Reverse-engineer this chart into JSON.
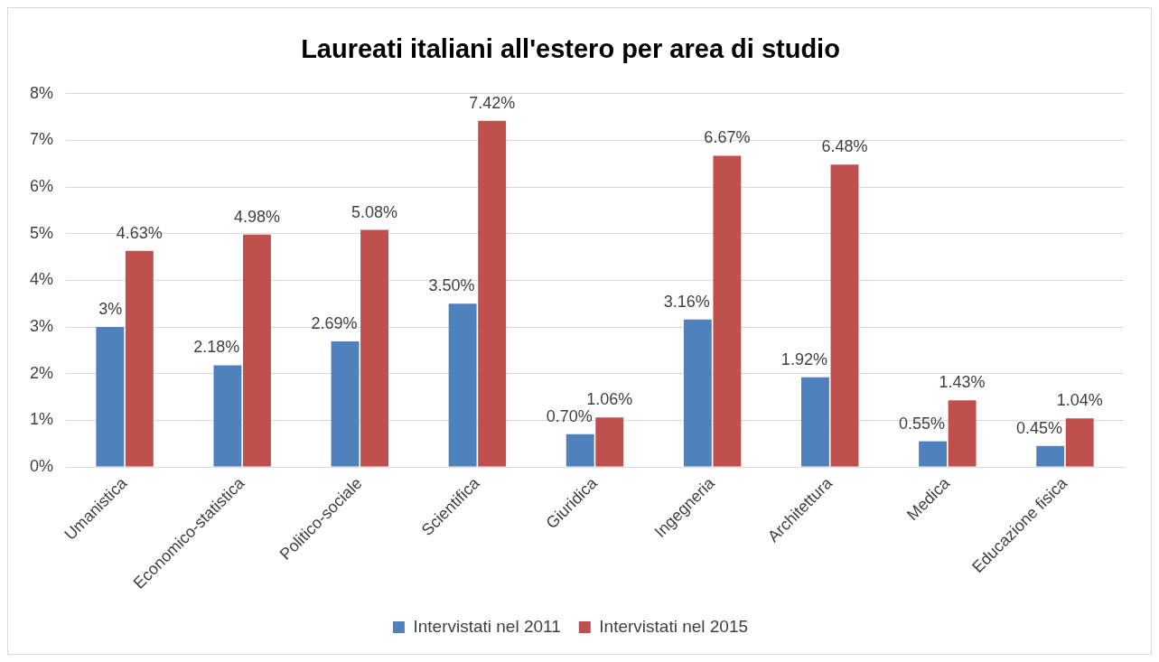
{
  "chart_data": {
    "type": "bar",
    "title": "Laureati italiani all'estero per area di studio",
    "categories": [
      "Umanistica",
      "Economico-statistica",
      "Politico-sociale",
      "Scientifica",
      "Giuridica",
      "Ingegneria",
      "Architettura",
      "Medica",
      "Educazione fisica"
    ],
    "series": [
      {
        "name": "Intervistati nel 2011",
        "color": "#4f81bd",
        "values": [
          3,
          2.18,
          2.69,
          3.5,
          0.7,
          3.16,
          1.92,
          0.55,
          0.45
        ],
        "value_labels": [
          "3%",
          "2.18%",
          "2.69%",
          "3.50%",
          "0.70%",
          "3.16%",
          "1.92%",
          "0.55%",
          "0.45%"
        ]
      },
      {
        "name": "Intervistati nel 2015",
        "color": "#c0504d",
        "values": [
          4.63,
          4.98,
          5.08,
          7.42,
          1.06,
          6.67,
          6.48,
          1.43,
          1.04
        ],
        "value_labels": [
          "4.63%",
          "4.98%",
          "5.08%",
          "7.42%",
          "1.06%",
          "6.67%",
          "6.48%",
          "1.43%",
          "1.04%"
        ]
      }
    ],
    "ylim": [
      0,
      8
    ],
    "yticks": [
      {
        "value": 0,
        "label": "0%"
      },
      {
        "value": 1,
        "label": "1%"
      },
      {
        "value": 2,
        "label": "2%"
      },
      {
        "value": 3,
        "label": "3%"
      },
      {
        "value": 4,
        "label": "4%"
      },
      {
        "value": 5,
        "label": "5%"
      },
      {
        "value": 6,
        "label": "6%"
      },
      {
        "value": 7,
        "label": "7%"
      },
      {
        "value": 8,
        "label": "8%"
      }
    ],
    "grid": "y",
    "legend": "bottom"
  }
}
